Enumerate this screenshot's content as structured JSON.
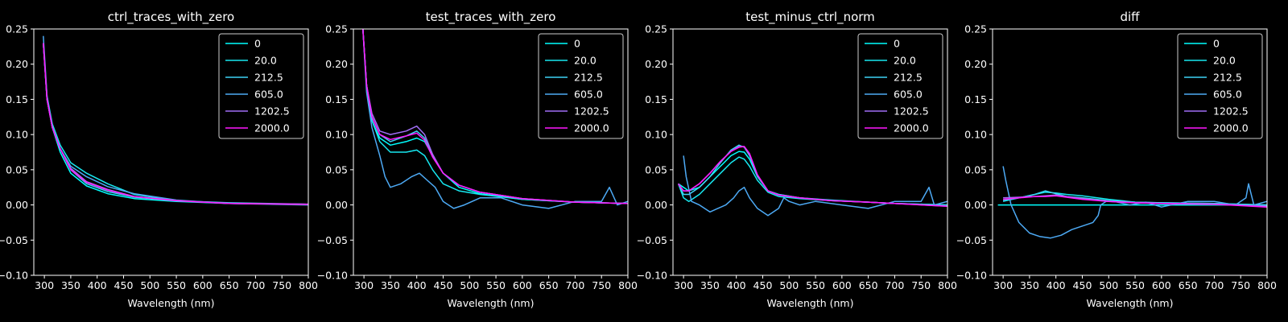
{
  "chart_data": [
    {
      "type": "line",
      "title": "ctrl_traces_with_zero",
      "xlabel": "Wavelength (nm)",
      "ylabel": "",
      "xlim": [
        280,
        800
      ],
      "ylim": [
        -0.1,
        0.25
      ],
      "xticks": [
        "300",
        "350",
        "400",
        "450",
        "500",
        "550",
        "600",
        "650",
        "700",
        "750",
        "800"
      ],
      "yticks": [
        "0.25",
        "0.20",
        "0.15",
        "0.10",
        "0.05",
        "0.00",
        "−0.05",
        "−0.10"
      ],
      "legend_position": "top-right",
      "grid": false,
      "series": [
        {
          "name": "0",
          "color": "#00ffff",
          "x": [
            298,
            305,
            315,
            330,
            350,
            380,
            420,
            470,
            550,
            650,
            800
          ],
          "y": [
            0.23,
            0.15,
            0.11,
            0.075,
            0.045,
            0.027,
            0.016,
            0.009,
            0.005,
            0.002,
            0.001
          ]
        },
        {
          "name": "20.0",
          "color": "#17e8f0",
          "x": [
            298,
            305,
            315,
            330,
            350,
            380,
            420,
            470,
            550,
            650,
            800
          ],
          "y": [
            0.23,
            0.155,
            0.115,
            0.085,
            0.06,
            0.045,
            0.03,
            0.015,
            0.006,
            0.002,
            0.001
          ]
        },
        {
          "name": "212.5",
          "color": "#3dd3f5",
          "x": [
            298,
            305,
            315,
            330,
            350,
            380,
            420,
            470,
            550,
            650,
            800
          ],
          "y": [
            0.23,
            0.15,
            0.11,
            0.08,
            0.05,
            0.03,
            0.019,
            0.011,
            0.006,
            0.003,
            0.001
          ]
        },
        {
          "name": "605.0",
          "color": "#4daaf5",
          "x": [
            298,
            305,
            315,
            330,
            350,
            380,
            420,
            470,
            550,
            650,
            800
          ],
          "y": [
            0.24,
            0.155,
            0.11,
            0.08,
            0.055,
            0.04,
            0.026,
            0.016,
            0.007,
            0.002,
            0.0
          ]
        },
        {
          "name": "1202.5",
          "color": "#a06ef5",
          "x": [
            298,
            305,
            315,
            330,
            350,
            380,
            420,
            470,
            550,
            650,
            800
          ],
          "y": [
            0.23,
            0.15,
            0.11,
            0.08,
            0.052,
            0.033,
            0.022,
            0.012,
            0.006,
            0.002,
            0.001
          ]
        },
        {
          "name": "2000.0",
          "color": "#ff19ff",
          "x": [
            298,
            305,
            315,
            330,
            350,
            380,
            420,
            470,
            550,
            650,
            800
          ],
          "y": [
            0.23,
            0.15,
            0.11,
            0.08,
            0.05,
            0.032,
            0.021,
            0.012,
            0.006,
            0.002,
            0.001
          ]
        }
      ]
    },
    {
      "type": "line",
      "title": "test_traces_with_zero",
      "xlabel": "Wavelength (nm)",
      "ylabel": "",
      "xlim": [
        280,
        800
      ],
      "ylim": [
        -0.1,
        0.25
      ],
      "xticks": [
        "300",
        "350",
        "400",
        "450",
        "500",
        "550",
        "600",
        "650",
        "700",
        "750",
        "800"
      ],
      "yticks": [
        "0.25",
        "0.20",
        "0.15",
        "0.10",
        "0.05",
        "0.00",
        "−0.05",
        "−0.10"
      ],
      "legend_position": "top-right",
      "grid": false,
      "series": [
        {
          "name": "0",
          "color": "#00ffff",
          "x": [
            298,
            305,
            315,
            330,
            350,
            380,
            400,
            415,
            430,
            450,
            480,
            520,
            600,
            700,
            800
          ],
          "y": [
            0.25,
            0.17,
            0.12,
            0.095,
            0.085,
            0.09,
            0.095,
            0.09,
            0.07,
            0.045,
            0.025,
            0.016,
            0.008,
            0.004,
            0.002
          ]
        },
        {
          "name": "20.0",
          "color": "#17e8f0",
          "x": [
            298,
            305,
            315,
            330,
            350,
            380,
            400,
            415,
            430,
            450,
            480,
            520,
            600,
            700,
            800
          ],
          "y": [
            0.25,
            0.17,
            0.12,
            0.09,
            0.075,
            0.075,
            0.078,
            0.07,
            0.05,
            0.03,
            0.02,
            0.015,
            0.008,
            0.004,
            0.002
          ]
        },
        {
          "name": "212.5",
          "color": "#3dd3f5",
          "x": [
            298,
            305,
            315,
            330,
            350,
            380,
            400,
            415,
            430,
            450,
            480,
            520,
            600,
            700,
            800
          ],
          "y": [
            0.25,
            0.17,
            0.125,
            0.1,
            0.09,
            0.098,
            0.105,
            0.095,
            0.07,
            0.045,
            0.028,
            0.018,
            0.009,
            0.004,
            0.002
          ]
        },
        {
          "name": "605.0",
          "color": "#4daaf5",
          "x": [
            298,
            305,
            315,
            330,
            340,
            350,
            370,
            390,
            405,
            420,
            435,
            450,
            470,
            490,
            520,
            560,
            600,
            650,
            700,
            750,
            765,
            780,
            800
          ],
          "y": [
            0.25,
            0.16,
            0.11,
            0.07,
            0.04,
            0.025,
            0.03,
            0.04,
            0.045,
            0.035,
            0.025,
            0.005,
            -0.005,
            0.0,
            0.01,
            0.01,
            0.0,
            -0.005,
            0.005,
            0.005,
            0.025,
            0.0,
            0.005
          ]
        },
        {
          "name": "1202.5",
          "color": "#a06ef5",
          "x": [
            298,
            305,
            315,
            330,
            350,
            380,
            400,
            415,
            430,
            450,
            480,
            520,
            600,
            700,
            800
          ],
          "y": [
            0.25,
            0.17,
            0.13,
            0.105,
            0.1,
            0.105,
            0.112,
            0.1,
            0.072,
            0.045,
            0.028,
            0.018,
            0.009,
            0.004,
            0.002
          ]
        },
        {
          "name": "2000.0",
          "color": "#ff19ff",
          "x": [
            298,
            305,
            315,
            330,
            350,
            380,
            400,
            415,
            430,
            450,
            480,
            520,
            600,
            700,
            800
          ],
          "y": [
            0.25,
            0.17,
            0.125,
            0.1,
            0.093,
            0.098,
            0.102,
            0.092,
            0.068,
            0.045,
            0.028,
            0.018,
            0.009,
            0.004,
            0.002
          ]
        }
      ]
    },
    {
      "type": "line",
      "title": "test_minus_ctrl_norm",
      "xlabel": "Wavelength (nm)",
      "ylabel": "",
      "xlim": [
        280,
        800
      ],
      "ylim": [
        -0.1,
        0.25
      ],
      "xticks": [
        "300",
        "350",
        "400",
        "450",
        "500",
        "550",
        "600",
        "650",
        "700",
        "750",
        "800"
      ],
      "yticks": [
        "0.25",
        "0.20",
        "0.15",
        "0.10",
        "0.05",
        "0.00",
        "−0.05",
        "−0.10"
      ],
      "legend_position": "top-right",
      "grid": false,
      "series": [
        {
          "name": "0",
          "color": "#00ffff",
          "x": [
            290,
            300,
            310,
            330,
            350,
            370,
            390,
            405,
            415,
            425,
            440,
            460,
            480,
            520,
            580,
            650,
            700,
            800
          ],
          "y": [
            0.03,
            0.025,
            0.02,
            0.025,
            0.04,
            0.055,
            0.07,
            0.076,
            0.075,
            0.065,
            0.04,
            0.02,
            0.015,
            0.01,
            0.007,
            0.004,
            0.002,
            0.0
          ]
        },
        {
          "name": "20.0",
          "color": "#17e8f0",
          "x": [
            290,
            300,
            310,
            330,
            350,
            370,
            390,
            405,
            415,
            425,
            440,
            460,
            480,
            520,
            580,
            650,
            700,
            800
          ],
          "y": [
            0.03,
            0.01,
            0.005,
            0.015,
            0.03,
            0.045,
            0.06,
            0.068,
            0.065,
            0.055,
            0.035,
            0.018,
            0.012,
            0.009,
            0.006,
            0.004,
            0.002,
            0.0
          ]
        },
        {
          "name": "212.5",
          "color": "#3dd3f5",
          "x": [
            290,
            300,
            310,
            330,
            350,
            370,
            390,
            405,
            415,
            425,
            440,
            460,
            480,
            520,
            580,
            650,
            700,
            800
          ],
          "y": [
            0.03,
            0.015,
            0.015,
            0.025,
            0.04,
            0.06,
            0.078,
            0.085,
            0.082,
            0.07,
            0.042,
            0.02,
            0.015,
            0.01,
            0.006,
            0.004,
            0.002,
            0.0
          ]
        },
        {
          "name": "605.0",
          "color": "#4daaf5",
          "x": [
            300,
            305,
            315,
            330,
            350,
            365,
            380,
            395,
            405,
            415,
            425,
            440,
            460,
            480,
            490,
            500,
            520,
            550,
            600,
            650,
            700,
            750,
            765,
            775,
            800
          ],
          "y": [
            0.07,
            0.04,
            0.005,
            0.0,
            -0.01,
            -0.005,
            0.0,
            0.01,
            0.02,
            0.025,
            0.01,
            -0.005,
            -0.015,
            -0.005,
            0.01,
            0.005,
            0.0,
            0.005,
            0.0,
            -0.005,
            0.005,
            0.005,
            0.025,
            0.0,
            0.005
          ]
        },
        {
          "name": "1202.5",
          "color": "#a06ef5",
          "x": [
            290,
            300,
            310,
            330,
            350,
            370,
            390,
            405,
            415,
            425,
            440,
            460,
            480,
            520,
            580,
            650,
            700,
            800
          ],
          "y": [
            0.03,
            0.02,
            0.02,
            0.03,
            0.045,
            0.062,
            0.076,
            0.083,
            0.083,
            0.072,
            0.042,
            0.02,
            0.014,
            0.01,
            0.006,
            0.004,
            0.002,
            -0.002
          ]
        },
        {
          "name": "2000.0",
          "color": "#ff19ff",
          "x": [
            290,
            300,
            310,
            330,
            350,
            370,
            390,
            405,
            415,
            425,
            440,
            460,
            480,
            520,
            580,
            650,
            700,
            800
          ],
          "y": [
            0.03,
            0.02,
            0.02,
            0.03,
            0.045,
            0.062,
            0.076,
            0.082,
            0.083,
            0.073,
            0.043,
            0.02,
            0.014,
            0.01,
            0.006,
            0.004,
            0.002,
            -0.002
          ]
        }
      ]
    },
    {
      "type": "line",
      "title": "diff",
      "xlabel": "Wavelength (nm)",
      "ylabel": "",
      "xlim": [
        280,
        800
      ],
      "ylim": [
        -0.1,
        0.25
      ],
      "xticks": [
        "300",
        "350",
        "400",
        "450",
        "500",
        "550",
        "600",
        "650",
        "700",
        "750",
        "800"
      ],
      "yticks": [
        "0.25",
        "0.20",
        "0.15",
        "0.10",
        "0.05",
        "0.00",
        "−0.05",
        "−0.10"
      ],
      "legend_position": "top-right",
      "grid": false,
      "series": [
        {
          "name": "0",
          "color": "#00ffff",
          "x": [
            290,
            800
          ],
          "y": [
            0.0,
            0.0
          ]
        },
        {
          "name": "20.0",
          "color": "#17e8f0",
          "x": [
            300,
            330,
            360,
            380,
            400,
            420,
            450,
            500,
            550,
            600,
            700,
            800
          ],
          "y": [
            0.005,
            0.01,
            0.015,
            0.018,
            0.017,
            0.015,
            0.013,
            0.008,
            0.004,
            0.003,
            0.002,
            0.0
          ]
        },
        {
          "name": "212.5",
          "color": "#3dd3f5",
          "x": [
            300,
            330,
            360,
            380,
            400,
            420,
            450,
            500,
            550,
            600,
            700,
            800
          ],
          "y": [
            0.006,
            0.01,
            0.015,
            0.02,
            0.016,
            0.012,
            0.01,
            0.006,
            0.004,
            0.003,
            0.002,
            0.0
          ]
        },
        {
          "name": "605.0",
          "color": "#4daaf5",
          "x": [
            300,
            305,
            315,
            330,
            350,
            370,
            390,
            410,
            430,
            450,
            470,
            480,
            485,
            495,
            510,
            540,
            570,
            600,
            650,
            700,
            740,
            760,
            765,
            775,
            800
          ],
          "y": [
            0.055,
            0.035,
            0.0,
            -0.025,
            -0.04,
            -0.045,
            -0.047,
            -0.043,
            -0.035,
            -0.03,
            -0.025,
            -0.015,
            0.0,
            0.005,
            0.005,
            0.0,
            0.004,
            -0.003,
            0.005,
            0.005,
            0.0,
            0.01,
            0.03,
            0.0,
            0.005
          ]
        },
        {
          "name": "1202.5",
          "color": "#a06ef5",
          "x": [
            300,
            330,
            360,
            380,
            400,
            420,
            450,
            500,
            550,
            600,
            700,
            800
          ],
          "y": [
            0.01,
            0.011,
            0.012,
            0.013,
            0.014,
            0.012,
            0.009,
            0.005,
            0.003,
            0.002,
            0.001,
            -0.002
          ]
        },
        {
          "name": "2000.0",
          "color": "#ff19ff",
          "x": [
            300,
            330,
            360,
            380,
            400,
            420,
            450,
            500,
            550,
            600,
            700,
            800
          ],
          "y": [
            0.008,
            0.01,
            0.012,
            0.012,
            0.013,
            0.011,
            0.008,
            0.005,
            0.003,
            0.002,
            0.001,
            -0.003
          ]
        }
      ]
    }
  ]
}
